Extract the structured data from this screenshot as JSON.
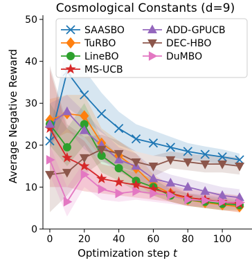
{
  "chart_data": {
    "type": "line",
    "title": "Cosmological Constants (d=9)",
    "xlabel": "Optimization step t",
    "ylabel": "Average Negative Reward",
    "xlim": [
      -4,
      114
    ],
    "ylim": [
      0,
      51
    ],
    "xticks": [
      0,
      20,
      40,
      60,
      80,
      100
    ],
    "yticks": [
      0,
      10,
      20,
      30,
      40,
      50
    ],
    "grid": false,
    "legend_position": "top-right",
    "series": [
      {
        "name": "SAASBO",
        "color": "#1f77b4",
        "marker": "x",
        "x": [
          0,
          10,
          20,
          30,
          40,
          50,
          60,
          70,
          80,
          90,
          100,
          110
        ],
        "y": [
          21,
          37.5,
          32,
          27.5,
          24,
          21.5,
          20.5,
          19.5,
          18.5,
          17.8,
          17.2,
          16.5
        ],
        "lower": [
          19,
          29,
          26,
          23,
          20,
          18.5,
          17.5,
          17,
          16.5,
          16,
          15.5,
          15
        ],
        "upper": [
          23,
          45,
          38,
          32.5,
          28,
          25,
          23.5,
          22,
          20.5,
          19.7,
          19,
          18
        ]
      },
      {
        "name": "TuRBO",
        "color": "#ff7f0e",
        "marker": "D",
        "x": [
          0,
          10,
          20,
          30,
          40,
          50,
          60,
          70,
          80,
          90,
          100,
          110
        ],
        "y": [
          26,
          27.5,
          27,
          20.5,
          17.5,
          14.5,
          10.5,
          8.5,
          7,
          6.3,
          5.8,
          5.3
        ],
        "lower": [
          21,
          23,
          22,
          17,
          14,
          11,
          8,
          6.5,
          5.5,
          5,
          4.5,
          4
        ],
        "upper": [
          31,
          32,
          32,
          24,
          21,
          18,
          13,
          10.5,
          8.5,
          7.6,
          7.1,
          6.6
        ]
      },
      {
        "name": "LineBO",
        "color": "#2ca02c",
        "marker": "o",
        "x": [
          0,
          10,
          20,
          30,
          40,
          50,
          60,
          70,
          80,
          90,
          100,
          110
        ],
        "y": [
          25,
          19.5,
          25,
          17.5,
          14.5,
          11.5,
          10,
          8,
          7,
          6.5,
          6,
          5.7
        ],
        "lower": [
          20,
          15,
          20,
          13.5,
          11.5,
          9,
          8,
          6.5,
          5.5,
          5,
          4.5,
          4.5
        ],
        "upper": [
          30,
          24,
          30,
          21.5,
          17.5,
          14,
          12,
          9.5,
          8.5,
          8,
          7.5,
          7
        ]
      },
      {
        "name": "MS-UCB",
        "color": "#d62728",
        "marker": "*",
        "x": [
          0,
          10,
          20,
          30,
          40,
          50,
          60,
          70,
          80,
          90,
          100,
          110
        ],
        "y": [
          24,
          17,
          15,
          12,
          11.2,
          10.5,
          9.5,
          8.5,
          7.5,
          7,
          6.5,
          6
        ],
        "lower": [
          10,
          10,
          9,
          8.5,
          8,
          7.5,
          7,
          6.5,
          5.5,
          5,
          4.5,
          4
        ],
        "upper": [
          38,
          24,
          21,
          15.5,
          14.5,
          13.5,
          12,
          10.5,
          9.5,
          9,
          8.5,
          8
        ]
      },
      {
        "name": "ADD-GPUCB",
        "color": "#9467bd",
        "marker": "^",
        "x": [
          0,
          10,
          20,
          30,
          40,
          50,
          60,
          70,
          80,
          90,
          100,
          110
        ],
        "y": [
          25,
          28,
          23.5,
          20,
          16.5,
          15,
          12,
          11,
          10,
          9,
          8,
          7.5
        ],
        "lower": [
          20,
          24,
          19,
          16.5,
          13.5,
          12,
          9.5,
          9,
          8,
          7,
          6,
          5.5
        ],
        "upper": [
          30,
          32,
          28,
          23.5,
          19.5,
          18,
          14.5,
          13,
          12,
          11,
          10,
          9.5
        ]
      },
      {
        "name": "DEC-HBO",
        "color": "#8c564b",
        "marker": "v",
        "x": [
          0,
          10,
          20,
          30,
          40,
          50,
          60,
          70,
          80,
          90,
          100,
          110
        ],
        "y": [
          13,
          13.5,
          17,
          19,
          18,
          16,
          15,
          16.5,
          16,
          15.5,
          15.5,
          15
        ],
        "lower": [
          4,
          8,
          13,
          16,
          15,
          13.5,
          12.5,
          14.5,
          14,
          13.5,
          13.5,
          13
        ],
        "upper": [
          39,
          25,
          22,
          22.5,
          21,
          18.5,
          17.5,
          18.5,
          18,
          17.5,
          17.5,
          17
        ]
      },
      {
        "name": "DuMBO",
        "color": "#e377c2",
        "marker": ">",
        "x": [
          0,
          10,
          20,
          30,
          40,
          50,
          60,
          70,
          80,
          90,
          100,
          110
        ],
        "y": [
          16.5,
          6.5,
          13,
          9.5,
          8.5,
          9,
          8.5,
          8,
          7,
          6.8,
          6.5,
          6.3
        ],
        "lower": [
          13,
          3,
          10,
          7,
          6.5,
          7,
          6.5,
          6,
          5.5,
          5.3,
          5,
          4.8
        ],
        "upper": [
          20,
          10,
          16,
          12,
          10.5,
          11,
          10.5,
          10,
          8.5,
          8.3,
          8,
          7.8
        ]
      }
    ]
  }
}
